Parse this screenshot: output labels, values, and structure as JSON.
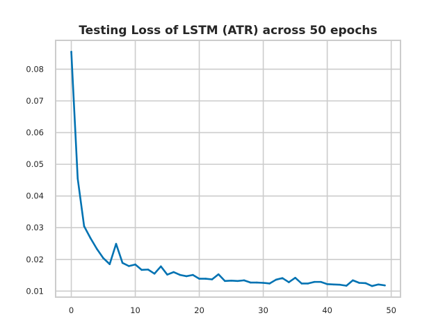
{
  "chart_data": {
    "type": "line",
    "title": "Testing Loss of LSTM (ATR) across 50 epochs",
    "xlabel": "",
    "ylabel": "",
    "xlim": [
      -2.45,
      51.45
    ],
    "ylim": [
      0.0081,
      0.0891
    ],
    "x_ticks": [
      0,
      10,
      20,
      30,
      40,
      50
    ],
    "y_ticks": [
      0.01,
      0.02,
      0.03,
      0.04,
      0.05,
      0.06,
      0.07,
      0.08
    ],
    "grid": true,
    "legend": "none",
    "series": [
      {
        "color": "#0072b2",
        "x": [
          0,
          1,
          2,
          3,
          4,
          5,
          6,
          7,
          8,
          9,
          10,
          11,
          12,
          13,
          14,
          15,
          16,
          17,
          18,
          19,
          20,
          21,
          22,
          23,
          24,
          25,
          26,
          27,
          28,
          29,
          30,
          31,
          32,
          33,
          34,
          35,
          36,
          37,
          38,
          39,
          40,
          41,
          42,
          43,
          44,
          45,
          46,
          47,
          48,
          49
        ],
        "values": [
          0.0855,
          0.0455,
          0.0305,
          0.0267,
          0.0233,
          0.0204,
          0.0185,
          0.0249,
          0.0189,
          0.0179,
          0.0184,
          0.0167,
          0.0168,
          0.0155,
          0.0178,
          0.0152,
          0.016,
          0.0151,
          0.0147,
          0.0151,
          0.0139,
          0.0139,
          0.0137,
          0.0153,
          0.0132,
          0.0133,
          0.0132,
          0.0134,
          0.0127,
          0.0127,
          0.0126,
          0.0124,
          0.0136,
          0.0141,
          0.0128,
          0.0142,
          0.0124,
          0.0124,
          0.0129,
          0.0129,
          0.0122,
          0.0121,
          0.012,
          0.0117,
          0.0134,
          0.0126,
          0.0125,
          0.0116,
          0.0121,
          0.0118
        ]
      }
    ]
  }
}
